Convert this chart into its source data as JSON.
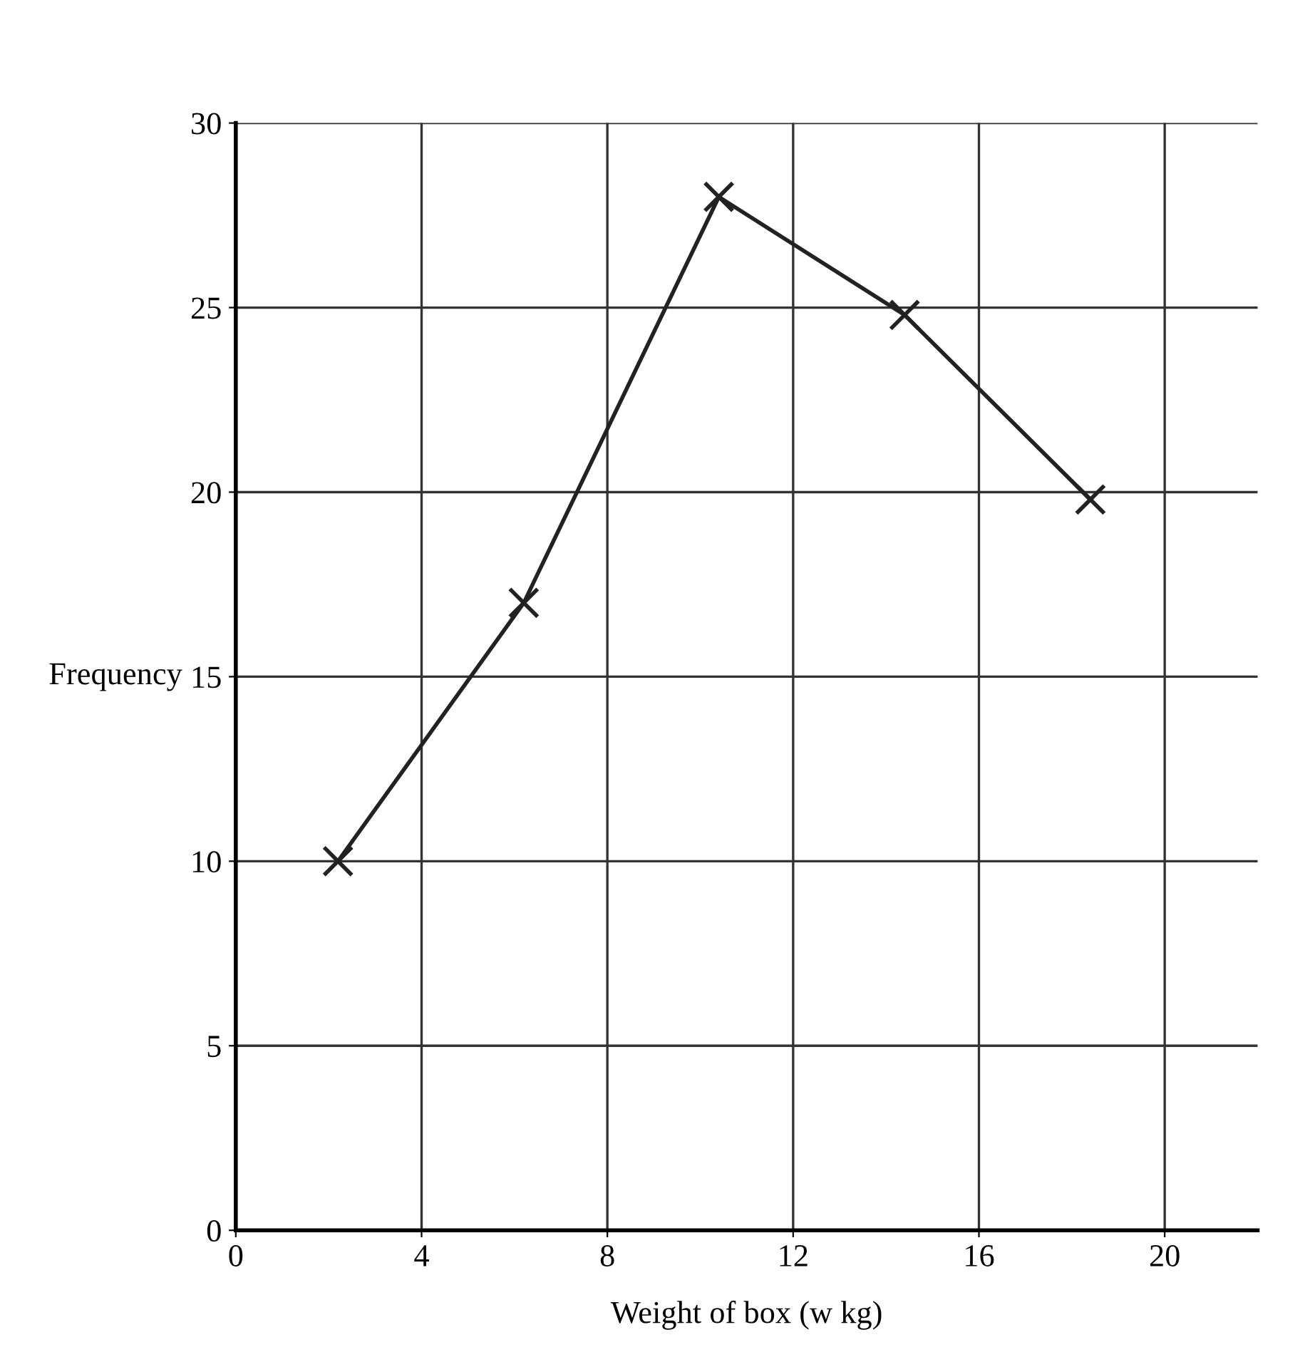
{
  "chart_data": {
    "type": "line",
    "xlabel": "Weight of box (w kg)",
    "ylabel": "Frequency",
    "x": [
      2.2,
      6.2,
      10.4,
      14.4,
      18.4
    ],
    "series": [
      {
        "color": "#222222",
        "values": [
          10,
          17,
          28,
          24.8,
          19.8
        ]
      }
    ],
    "xlim": [
      0,
      22
    ],
    "ylim": [
      0,
      30
    ],
    "xticks": [
      0,
      4,
      8,
      12,
      16,
      20
    ],
    "yticks": [
      0,
      5,
      10,
      15,
      20,
      25,
      30
    ],
    "grid": true,
    "marker": "cross",
    "line_style": "solid"
  }
}
